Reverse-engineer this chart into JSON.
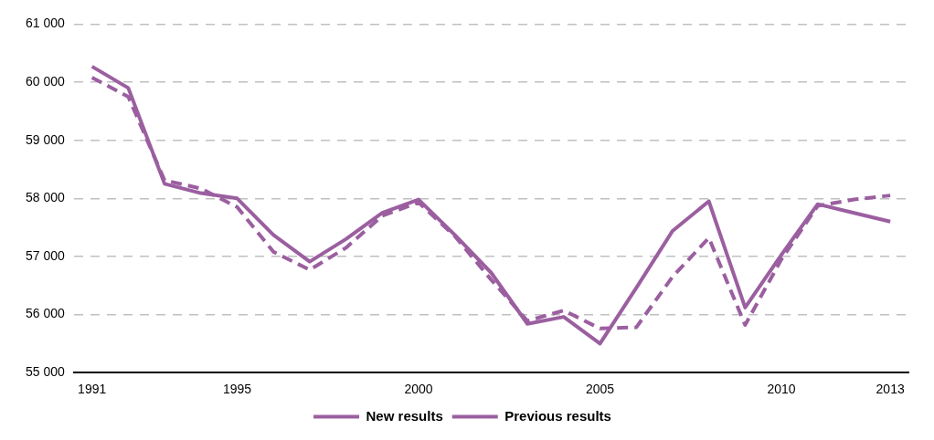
{
  "chart_data": {
    "type": "line",
    "categories": [
      "1991",
      null,
      null,
      null,
      "1995",
      null,
      null,
      null,
      null,
      "2000",
      null,
      null,
      null,
      null,
      "2005",
      null,
      null,
      null,
      null,
      "2010",
      null,
      null,
      "2013"
    ],
    "series": [
      {
        "name": "New results",
        "color": "#9b5fa0",
        "line_style": "solid",
        "values": [
          60270,
          59900,
          58250,
          58090,
          58000,
          57370,
          56910,
          57300,
          57750,
          57980,
          57370,
          56720,
          55840,
          55960,
          55500,
          56460,
          57440,
          57950,
          56120,
          57030,
          57900,
          57750,
          57600
        ]
      },
      {
        "name": "Previous results",
        "color": "#9b5fa0",
        "line_style": "dashed",
        "values": [
          60080,
          59750,
          58310,
          58170,
          57850,
          57080,
          56770,
          57150,
          57700,
          57930,
          57350,
          56600,
          55890,
          56070,
          55760,
          55780,
          56650,
          57320,
          55820,
          56950,
          57870,
          57980,
          58050
        ]
      }
    ],
    "ylim": [
      55000,
      61000
    ],
    "yticks": [
      {
        "value": 55000,
        "label": "55 000"
      },
      {
        "value": 56000,
        "label": "56 000"
      },
      {
        "value": 57000,
        "label": "57 000"
      },
      {
        "value": 58000,
        "label": "58 000"
      },
      {
        "value": 59000,
        "label": "59 000"
      },
      {
        "value": 60000,
        "label": "60 000"
      },
      {
        "value": 61000,
        "label": "61 000"
      }
    ],
    "grid": "y",
    "legend": "bottom",
    "marker": "none"
  }
}
